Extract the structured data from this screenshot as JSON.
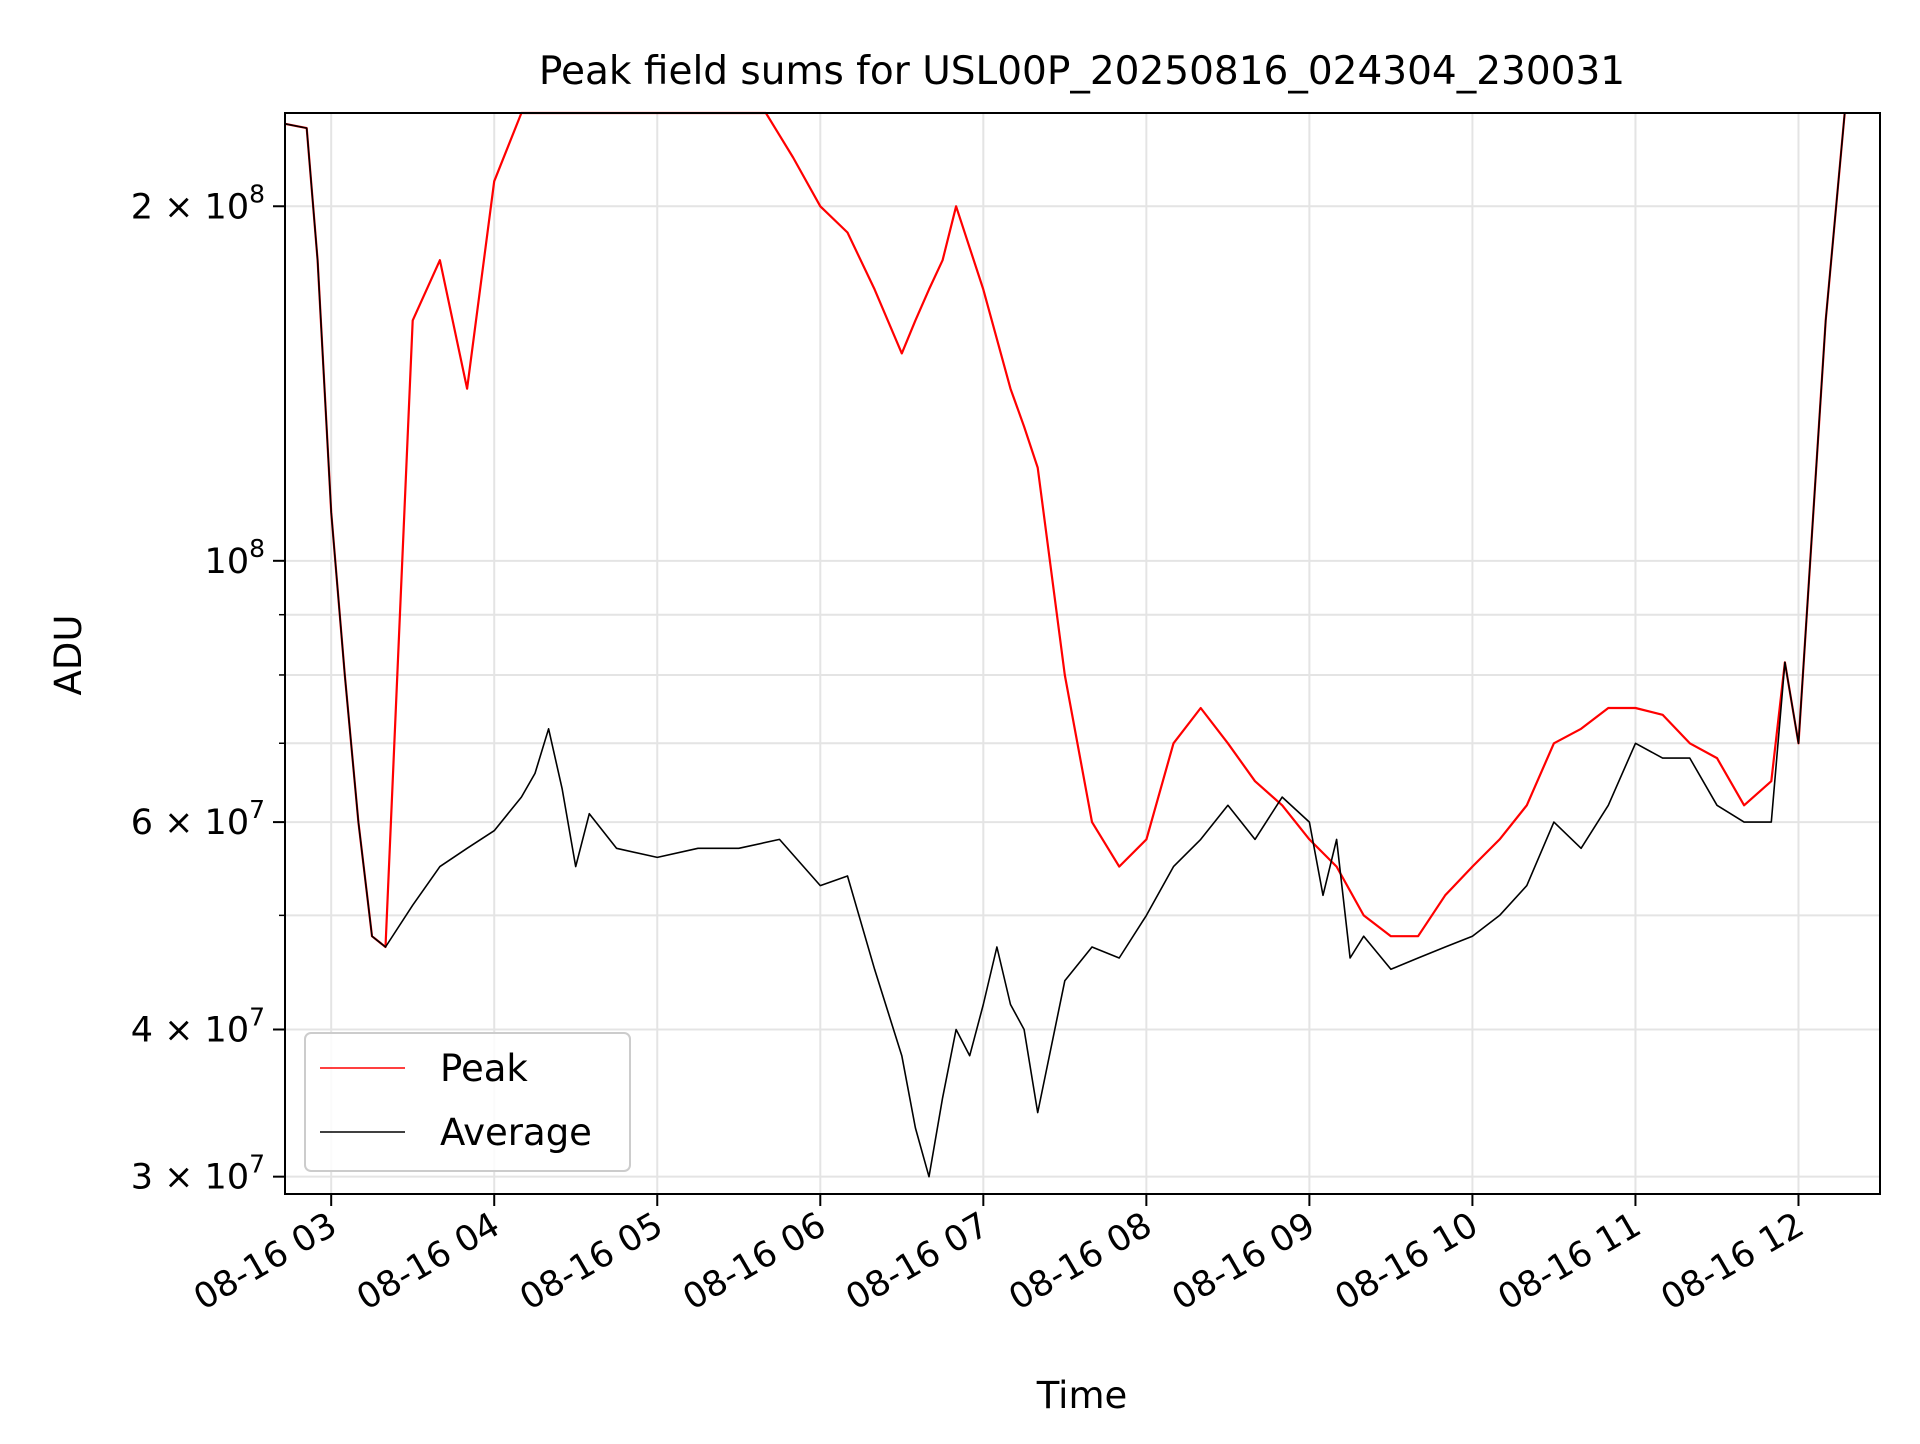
{
  "chart_data": {
    "type": "line",
    "title": "Peak field sums for USL00P_20250816_024304_230031",
    "xlabel": "Time",
    "ylabel": "ADU",
    "yscale": "log",
    "xlim": [
      "08-16 02:43",
      "08-16 12:30"
    ],
    "ylim": [
      29000000,
      240000000
    ],
    "grid": true,
    "legend_position": "lower-left",
    "x_ticks": [
      "08-16 03",
      "08-16 04",
      "08-16 05",
      "08-16 06",
      "08-16 07",
      "08-16 08",
      "08-16 09",
      "08-16 10",
      "08-16 11",
      "08-16 12"
    ],
    "y_ticks": [
      {
        "value": 30000000,
        "mant": "3",
        "exp": "7"
      },
      {
        "value": 40000000,
        "mant": "4",
        "exp": "7"
      },
      {
        "value": 60000000,
        "mant": "6",
        "exp": "7"
      },
      {
        "value": 100000000,
        "mant": "",
        "exp": "8"
      },
      {
        "value": 200000000,
        "mant": "2",
        "exp": "8"
      }
    ],
    "series": [
      {
        "name": "Peak",
        "color": "#ff0000",
        "x": [
          "08-16 02:43",
          "08-16 02:51",
          "08-16 02:55",
          "08-16 03:00",
          "08-16 03:05",
          "08-16 03:10",
          "08-16 03:15",
          "08-16 03:20",
          "08-16 03:30",
          "08-16 03:40",
          "08-16 03:50",
          "08-16 04:00",
          "08-16 04:10",
          "08-16 04:20",
          "08-16 04:30",
          "08-16 04:40",
          "08-16 04:50",
          "08-16 05:00",
          "08-16 05:10",
          "08-16 05:20",
          "08-16 05:30",
          "08-16 05:40",
          "08-16 05:50",
          "08-16 06:00",
          "08-16 06:10",
          "08-16 06:20",
          "08-16 06:30",
          "08-16 06:35",
          "08-16 06:40",
          "08-16 06:45",
          "08-16 06:50",
          "08-16 07:00",
          "08-16 07:10",
          "08-16 07:15",
          "08-16 07:20",
          "08-16 07:30",
          "08-16 07:40",
          "08-16 07:50",
          "08-16 08:00",
          "08-16 08:10",
          "08-16 08:20",
          "08-16 08:30",
          "08-16 08:40",
          "08-16 08:50",
          "08-16 09:00",
          "08-16 09:10",
          "08-16 09:20",
          "08-16 09:30",
          "08-16 09:40",
          "08-16 09:50",
          "08-16 10:00",
          "08-16 10:10",
          "08-16 10:20",
          "08-16 10:30",
          "08-16 10:40",
          "08-16 10:50",
          "08-16 11:00",
          "08-16 11:10",
          "08-16 11:20",
          "08-16 11:30",
          "08-16 11:40",
          "08-16 11:50",
          "08-16 11:55",
          "08-16 12:00",
          "08-16 12:10",
          "08-16 12:17"
        ],
        "y": [
          235000000,
          233000000,
          180000000,
          110000000,
          80000000,
          60000000,
          48000000,
          47000000,
          160000000,
          180000000,
          140000000,
          210000000,
          240000000,
          240000000,
          240000000,
          240000000,
          240000000,
          240000000,
          240000000,
          240000000,
          240000000,
          240000000,
          220000000,
          200000000,
          190000000,
          170000000,
          150000000,
          160000000,
          170000000,
          180000000,
          200000000,
          170000000,
          140000000,
          130000000,
          120000000,
          80000000,
          60000000,
          55000000,
          58000000,
          70000000,
          75000000,
          70000000,
          65000000,
          62000000,
          58000000,
          55000000,
          50000000,
          48000000,
          48000000,
          52000000,
          55000000,
          58000000,
          62000000,
          70000000,
          72000000,
          75000000,
          75000000,
          74000000,
          70000000,
          68000000,
          62000000,
          65000000,
          82000000,
          70000000,
          160000000,
          240000000
        ]
      },
      {
        "name": "Average",
        "color": "#000000",
        "x": [
          "08-16 02:43",
          "08-16 02:51",
          "08-16 02:55",
          "08-16 03:00",
          "08-16 03:05",
          "08-16 03:10",
          "08-16 03:15",
          "08-16 03:20",
          "08-16 03:30",
          "08-16 03:40",
          "08-16 03:50",
          "08-16 04:00",
          "08-16 04:10",
          "08-16 04:15",
          "08-16 04:20",
          "08-16 04:25",
          "08-16 04:30",
          "08-16 04:35",
          "08-16 04:45",
          "08-16 05:00",
          "08-16 05:15",
          "08-16 05:30",
          "08-16 05:45",
          "08-16 06:00",
          "08-16 06:10",
          "08-16 06:20",
          "08-16 06:30",
          "08-16 06:35",
          "08-16 06:40",
          "08-16 06:45",
          "08-16 06:50",
          "08-16 06:55",
          "08-16 07:00",
          "08-16 07:05",
          "08-16 07:10",
          "08-16 07:15",
          "08-16 07:20",
          "08-16 07:30",
          "08-16 07:40",
          "08-16 07:50",
          "08-16 08:00",
          "08-16 08:10",
          "08-16 08:20",
          "08-16 08:30",
          "08-16 08:40",
          "08-16 08:50",
          "08-16 09:00",
          "08-16 09:05",
          "08-16 09:10",
          "08-16 09:15",
          "08-16 09:20",
          "08-16 09:30",
          "08-16 09:40",
          "08-16 09:50",
          "08-16 10:00",
          "08-16 10:10",
          "08-16 10:20",
          "08-16 10:30",
          "08-16 10:40",
          "08-16 10:50",
          "08-16 11:00",
          "08-16 11:10",
          "08-16 11:20",
          "08-16 11:30",
          "08-16 11:40",
          "08-16 11:50",
          "08-16 11:55",
          "08-16 12:00",
          "08-16 12:10",
          "08-16 12:17"
        ],
        "y": [
          235000000,
          233000000,
          180000000,
          110000000,
          80000000,
          60000000,
          48000000,
          47000000,
          51000000,
          55000000,
          57000000,
          59000000,
          63000000,
          66000000,
          72000000,
          64000000,
          55000000,
          61000000,
          57000000,
          56000000,
          57000000,
          57000000,
          58000000,
          53000000,
          54000000,
          45000000,
          38000000,
          33000000,
          30000000,
          35000000,
          40000000,
          38000000,
          42000000,
          47000000,
          42000000,
          40000000,
          34000000,
          44000000,
          47000000,
          46000000,
          50000000,
          55000000,
          58000000,
          62000000,
          58000000,
          63000000,
          60000000,
          52000000,
          58000000,
          46000000,
          48000000,
          45000000,
          46000000,
          47000000,
          48000000,
          50000000,
          53000000,
          60000000,
          57000000,
          62000000,
          70000000,
          68000000,
          68000000,
          62000000,
          60000000,
          60000000,
          82000000,
          70000000,
          160000000,
          240000000
        ]
      }
    ]
  }
}
